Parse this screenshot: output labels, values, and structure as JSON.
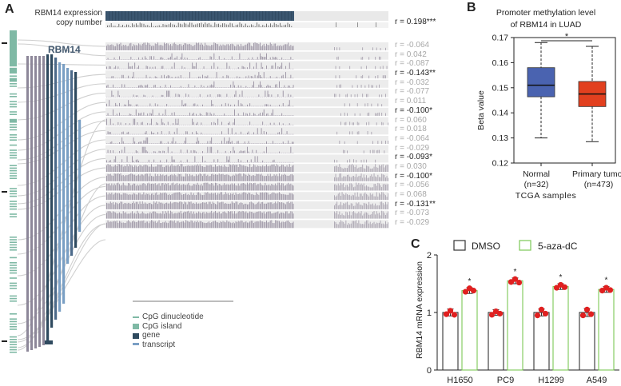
{
  "panels": {
    "a": "A",
    "b": "B",
    "c": "C"
  },
  "panel_a": {
    "gene_label": "RBM14",
    "expression_label": "RBM14 expression",
    "copy_number_label": "copy number",
    "copy_number_r": "r = 0.198***",
    "correlations": [
      {
        "text": "r = -0.064",
        "sig": false
      },
      {
        "text": "r = 0.042",
        "sig": false
      },
      {
        "text": "r = -0.087",
        "sig": false
      },
      {
        "text": "r = -0.143**",
        "sig": true
      },
      {
        "text": "r = -0.032",
        "sig": false
      },
      {
        "text": "r = -0.077",
        "sig": false
      },
      {
        "text": "r = 0.011",
        "sig": false
      },
      {
        "text": "r = -0.100*",
        "sig": true
      },
      {
        "text": "r = 0.060",
        "sig": false
      },
      {
        "text": "r = 0.018",
        "sig": false
      },
      {
        "text": "r = -0.064",
        "sig": false
      },
      {
        "text": "r = -0.029",
        "sig": false
      },
      {
        "text": "r = -0.093*",
        "sig": true
      },
      {
        "text": "r = 0.030",
        "sig": false
      },
      {
        "text": "r = -0.100*",
        "sig": true
      },
      {
        "text": "r = -0.056",
        "sig": false
      },
      {
        "text": "r = 0.068",
        "sig": false
      },
      {
        "text": "r = -0.131**",
        "sig": true
      },
      {
        "text": "r = -0.073",
        "sig": false
      },
      {
        "text": "r = -0.029",
        "sig": false
      }
    ],
    "legend": [
      {
        "label": "CpG dinucleotide",
        "color": "#7fb9a5"
      },
      {
        "label": "CpG island",
        "color": "#7fb9a5"
      },
      {
        "label": "gene",
        "color": "#2f4a5f"
      },
      {
        "label": "transcript",
        "color": "#7a9fc4"
      }
    ]
  },
  "chart_data": [
    {
      "type": "box",
      "title": "Promoter methylation level of RBM14 in LUAD",
      "title_lines": [
        "Promoter methylation level",
        "of RBM14 in LUAD"
      ],
      "ylabel": "Beta value",
      "xlabel": "TCGA samples",
      "ylim": [
        0.12,
        0.17
      ],
      "yticks": [
        0.12,
        0.13,
        0.14,
        0.15,
        0.16,
        0.17
      ],
      "ytick_labels": [
        "0.12",
        "0.13",
        "0.14",
        "0.15",
        "0.16",
        "0.17"
      ],
      "significance": "*",
      "groups": [
        {
          "name": "Normal",
          "n_label": "(n=32)",
          "min": 0.13,
          "q1": 0.1464,
          "median": 0.151,
          "q3": 0.158,
          "max": 0.168,
          "color": "#4a63b0"
        },
        {
          "name": "Primary tumor",
          "n_label": "(n=473)",
          "min": 0.1285,
          "q1": 0.1425,
          "median": 0.1475,
          "q3": 0.1525,
          "max": 0.1665,
          "color": "#e2401f"
        }
      ]
    },
    {
      "type": "bar",
      "ylabel": "RBM14 mRNA expression",
      "ylim": [
        0,
        2
      ],
      "yticks": [
        0,
        1,
        2
      ],
      "ytick_labels": [
        "0",
        "1",
        "2"
      ],
      "categories": [
        "H1650",
        "PC9",
        "H1299",
        "A549"
      ],
      "series": [
        {
          "name": "DMSO",
          "values": [
            1.0,
            1.0,
            1.0,
            1.0
          ],
          "errors": [
            0.06,
            0.05,
            0.06,
            0.07
          ],
          "edge": "#333333",
          "points": [
            [
              0.97,
              1.03,
              0.96
            ],
            [
              0.96,
              1.02,
              0.98
            ],
            [
              0.95,
              1.05,
              0.98
            ],
            [
              0.95,
              1.05,
              0.97
            ]
          ]
        },
        {
          "name": "5-aza-dC",
          "values": [
            1.38,
            1.55,
            1.45,
            1.4
          ],
          "errors": [
            0.05,
            0.05,
            0.05,
            0.05
          ],
          "edge": "#7cc856",
          "points": [
            [
              1.36,
              1.42,
              1.38
            ],
            [
              1.53,
              1.58,
              1.52
            ],
            [
              1.43,
              1.48,
              1.44
            ],
            [
              1.38,
              1.43,
              1.39
            ]
          ]
        }
      ],
      "annotations": [
        "*",
        "*",
        "*",
        "*"
      ],
      "point_color": "#e02020"
    }
  ]
}
